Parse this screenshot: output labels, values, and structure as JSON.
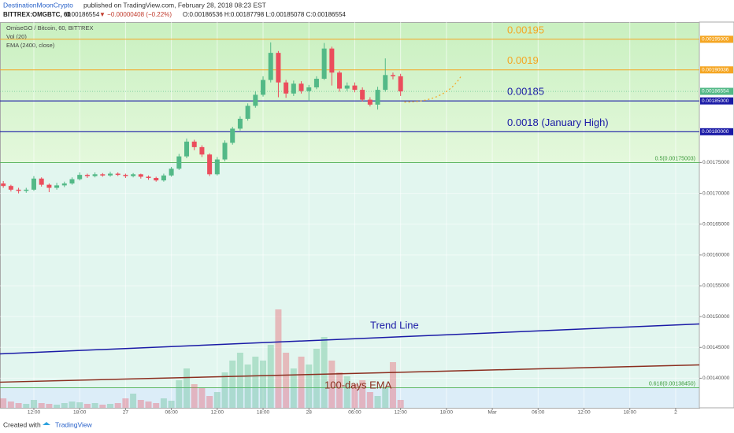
{
  "header": {
    "author": "DestinationMoonCrypto",
    "published": "published on TradingView.com, February 28, 2018 08:23 EST",
    "symbol": "BITTREX:OMGBTC, 60",
    "last": "0.00186554",
    "change": "▼ −0.00000408 (−0.22%)",
    "ohlc": "O:0.00186536 H:0.00187798 L:0.00185078 C:0.00186554"
  },
  "footer": {
    "created": "Created with",
    "brand": "TradingView"
  },
  "chart_data": {
    "type": "candlestick",
    "legend": [
      "OmiseGO / Bitcoin, 60, BITTREX",
      "Vol (20)",
      "EMA (2400, close)"
    ],
    "up_color": "#53b987",
    "down_color": "#eb4d5c",
    "x": [
      0,
      1,
      2,
      3,
      4,
      5,
      6,
      7,
      8,
      9,
      10,
      11,
      12,
      13,
      14,
      15,
      16,
      17,
      18,
      19,
      20,
      21,
      22,
      23,
      24,
      25,
      26,
      27,
      28,
      29,
      30,
      31,
      32,
      33,
      34,
      35,
      36,
      37,
      38,
      39,
      40,
      41,
      42,
      43,
      44,
      45,
      46,
      47,
      48,
      49,
      50,
      51,
      52
    ],
    "open": [
      0.001716,
      0.001712,
      0.001706,
      0.001704,
      0.001706,
      0.001724,
      0.001714,
      0.001709,
      0.001713,
      0.001716,
      0.001723,
      0.00173,
      0.001728,
      0.001731,
      0.001729,
      0.001732,
      0.00173,
      0.001728,
      0.001731,
      0.001727,
      0.001725,
      0.001721,
      0.001729,
      0.00174,
      0.00176,
      0.001784,
      0.001775,
      0.001763,
      0.001731,
      0.001755,
      0.001782,
      0.001805,
      0.001821,
      0.001842,
      0.00186,
      0.001884,
      0.001928,
      0.00188,
      0.001862,
      0.001878,
      0.001866,
      0.001872,
      0.001886,
      0.001935,
      0.001896,
      0.00187,
      0.001875,
      0.001868,
      0.001852,
      0.001844,
      0.001868,
      0.001892,
      0.00189
    ],
    "high": [
      0.00172,
      0.001714,
      0.001709,
      0.001709,
      0.001728,
      0.001726,
      0.001716,
      0.001717,
      0.001719,
      0.001726,
      0.001734,
      0.001732,
      0.001734,
      0.001733,
      0.001735,
      0.001734,
      0.001732,
      0.001733,
      0.001732,
      0.001729,
      0.001727,
      0.001732,
      0.001743,
      0.001764,
      0.001789,
      0.001787,
      0.001778,
      0.001765,
      0.001759,
      0.001786,
      0.001808,
      0.001825,
      0.001846,
      0.001865,
      0.00189,
      0.001945,
      0.001931,
      0.001884,
      0.001883,
      0.001882,
      0.001876,
      0.00189,
      0.001944,
      0.001938,
      0.001899,
      0.00188,
      0.00188,
      0.001872,
      0.001856,
      0.001873,
      0.001919,
      0.001896,
      0.001894
    ],
    "low": [
      0.001709,
      0.001703,
      0.0017,
      0.001701,
      0.001704,
      0.001711,
      0.001702,
      0.001706,
      0.00171,
      0.001714,
      0.001721,
      0.001725,
      0.001726,
      0.001727,
      0.001727,
      0.001728,
      0.001725,
      0.001726,
      0.001724,
      0.001722,
      0.001719,
      0.001719,
      0.001727,
      0.001738,
      0.001757,
      0.00177,
      0.001759,
      0.001728,
      0.001729,
      0.001752,
      0.001779,
      0.001802,
      0.001818,
      0.001839,
      0.001857,
      0.00188,
      0.001856,
      0.001855,
      0.001858,
      0.001862,
      0.00185,
      0.001869,
      0.001884,
      0.001875,
      0.001865,
      0.001866,
      0.001864,
      0.001849,
      0.001841,
      0.001836,
      0.001865,
      0.001885,
      0.001858
    ],
    "close": [
      0.001712,
      0.001706,
      0.001704,
      0.001706,
      0.001724,
      0.001714,
      0.001709,
      0.001713,
      0.001716,
      0.001723,
      0.00173,
      0.001728,
      0.001731,
      0.001729,
      0.001732,
      0.00173,
      0.001728,
      0.001731,
      0.001727,
      0.001725,
      0.001721,
      0.001729,
      0.00174,
      0.00176,
      0.001784,
      0.001775,
      0.001763,
      0.001731,
      0.001755,
      0.001782,
      0.001805,
      0.001821,
      0.001842,
      0.00186,
      0.001884,
      0.001928,
      0.00188,
      0.001862,
      0.001878,
      0.001866,
      0.001872,
      0.001886,
      0.001935,
      0.001896,
      0.00187,
      0.001875,
      0.001868,
      0.001852,
      0.001844,
      0.001868,
      0.001892,
      0.00189,
      0.0018655
    ],
    "volume": [
      12,
      8,
      6,
      5,
      10,
      6,
      5,
      4,
      6,
      8,
      7,
      5,
      6,
      4,
      5,
      6,
      12,
      18,
      10,
      8,
      6,
      12,
      9,
      35,
      50,
      30,
      25,
      15,
      20,
      45,
      60,
      70,
      55,
      65,
      60,
      80,
      125,
      70,
      50,
      65,
      55,
      75,
      90,
      60,
      45,
      40,
      30,
      35,
      20,
      15,
      25,
      58,
      10
    ],
    "xlim": [
      -0.43,
      91.1
    ],
    "xticks": [
      {
        "value": 4,
        "label": "12:00"
      },
      {
        "value": 10,
        "label": "18:00"
      },
      {
        "value": 16,
        "label": "27"
      },
      {
        "value": 22,
        "label": "06:00"
      },
      {
        "value": 28,
        "label": "12:00"
      },
      {
        "value": 34,
        "label": "18:00"
      },
      {
        "value": 40,
        "label": "28"
      },
      {
        "value": 46,
        "label": "06:00"
      },
      {
        "value": 52,
        "label": "12:00"
      },
      {
        "value": 58,
        "label": "18:00"
      },
      {
        "value": 64,
        "label": "Mar"
      },
      {
        "value": 70,
        "label": "06:00"
      },
      {
        "value": 76,
        "label": "12:00"
      },
      {
        "value": 82,
        "label": "18:00"
      },
      {
        "value": 88,
        "label": "2"
      }
    ],
    "ylim": [
      0.001352,
      0.001978
    ],
    "yticks": [
      {
        "value": 0.00175,
        "label": "0.00175000"
      },
      {
        "value": 0.0017,
        "label": "0.00170000"
      },
      {
        "value": 0.00165,
        "label": "0.00165000"
      },
      {
        "value": 0.0016,
        "label": "0.00160000"
      },
      {
        "value": 0.00155,
        "label": "0.00155000"
      },
      {
        "value": 0.0015,
        "label": "0.00150000"
      },
      {
        "value": 0.00145,
        "label": "0.00145000"
      },
      {
        "value": 0.0014,
        "label": "0.00140000"
      }
    ],
    "levels": [
      {
        "value": 0.00195,
        "label": "0.00195",
        "axis_label": "0.00195000",
        "color": "#f5a623"
      },
      {
        "value": 0.00190036,
        "label": "0.0019",
        "axis_label": "0.00190036",
        "color": "#f5a623"
      },
      {
        "value": 0.00185,
        "label": "0.00185",
        "axis_label": "0.00185000",
        "color": "#1a1aa6"
      },
      {
        "value": 0.0018,
        "label": "0.0018 (January High)",
        "axis_label": "0.00180000",
        "color": "#1a1aa6"
      }
    ],
    "last_price": {
      "value": 0.00186554,
      "label": "0.00186554"
    },
    "fib": [
      {
        "value": 0.00175003,
        "label": "0.5(0.00175003)"
      },
      {
        "value": 0.0013845,
        "label": "0.618(0.00138450)"
      }
    ],
    "trend_line": {
      "label": "Trend Line",
      "x": [
        -0.43,
        91.1
      ],
      "y": [
        0.0014395,
        0.001488
      ],
      "color": "#1a1aa6"
    },
    "ema_line": {
      "label": "100-days EMA",
      "x": [
        -0.43,
        91.1
      ],
      "y": [
        0.0013936,
        0.0014217
      ],
      "color": "#8b2e1f"
    },
    "projection": {
      "x": [
        52.5,
        60
      ],
      "y": [
        0.001848,
        0.001892
      ],
      "color": "#f5a623"
    }
  }
}
